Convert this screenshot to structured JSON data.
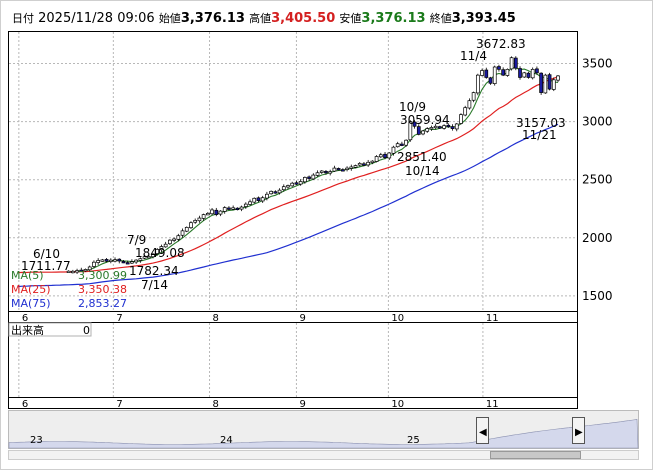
{
  "header": {
    "date_label": "日付",
    "datetime": "2025/11/28 09:06",
    "open_label": "始値",
    "open": "3,376.13",
    "high_label": "高値",
    "high": "3,405.50",
    "low_label": "安値",
    "low": "3,376.13",
    "close_label": "終値",
    "close": "3,393.45"
  },
  "legend": {
    "ma5": "MA(5)",
    "ma5_value": "3,300.99",
    "ma25": "MA(25)",
    "ma25_value": "3,350.38",
    "ma75": "MA(75)",
    "ma75_value": "2,853.27"
  },
  "volume_label": "出来高",
  "volume_value": "0",
  "colors": {
    "up": "#ffffff",
    "down": "#1a1aa0",
    "ma5": "#2a7a2a",
    "ma25": "#e02020",
    "ma75": "#2030d0",
    "grid": "#b8b8b8",
    "header_high": "#d42020",
    "header_low": "#1a7a1a"
  },
  "chart_data": {
    "type": "candlestick",
    "ylim": [
      1370,
      3780
    ],
    "y_ticks": [
      "1500",
      "2000",
      "2500",
      "3000",
      "3500"
    ],
    "x_ticks": [
      "6",
      "7",
      "8",
      "9",
      "10",
      "11"
    ],
    "nav_ticks": [
      "23",
      "24",
      "25"
    ],
    "annotations": [
      {
        "date": "6/10",
        "value": "1711.77"
      },
      {
        "date": "7/9",
        "value": "1849.08"
      },
      {
        "date": "7/14",
        "value": "1782.34"
      },
      {
        "date": "10/9",
        "value": "3059.94"
      },
      {
        "date": "10/14",
        "value": "2851.40"
      },
      {
        "date": "11/4",
        "value": "3672.83"
      },
      {
        "date": "11/21",
        "value": "3157.03"
      }
    ],
    "closes": [
      1700,
      1705,
      1700,
      1710,
      1708,
      1700,
      1705,
      1702,
      1706,
      1710,
      1712,
      1709,
      1713,
      1712,
      1718,
      1721,
      1728,
      1749,
      1790,
      1805,
      1810,
      1798,
      1808,
      1812,
      1800,
      1790,
      1785,
      1795,
      1808,
      1820,
      1838,
      1840,
      1860,
      1900,
      1925,
      1945,
      1980,
      1990,
      2018,
      2060,
      2090,
      2130,
      2150,
      2170,
      2200,
      2210,
      2240,
      2200,
      2230,
      2260,
      2245,
      2258,
      2250,
      2265,
      2290,
      2310,
      2340,
      2320,
      2345,
      2375,
      2400,
      2390,
      2410,
      2440,
      2450,
      2470,
      2465,
      2485,
      2520,
      2510,
      2540,
      2560,
      2575,
      2560,
      2570,
      2600,
      2590,
      2585,
      2600,
      2610,
      2622,
      2640,
      2630,
      2650,
      2660,
      2700,
      2715,
      2690,
      2730,
      2780,
      2810,
      2800,
      2840,
      3000,
      2960,
      2890,
      2920,
      2940,
      2950,
      2960,
      2945,
      2965,
      2960,
      2940,
      2980,
      3060,
      3120,
      3180,
      3250,
      3400,
      3440,
      3380,
      3330,
      3470,
      3450,
      3400,
      3450,
      3550,
      3460,
      3380,
      3420,
      3380,
      3450,
      3420,
      3250,
      3400,
      3280,
      3360,
      3393.45
    ]
  }
}
